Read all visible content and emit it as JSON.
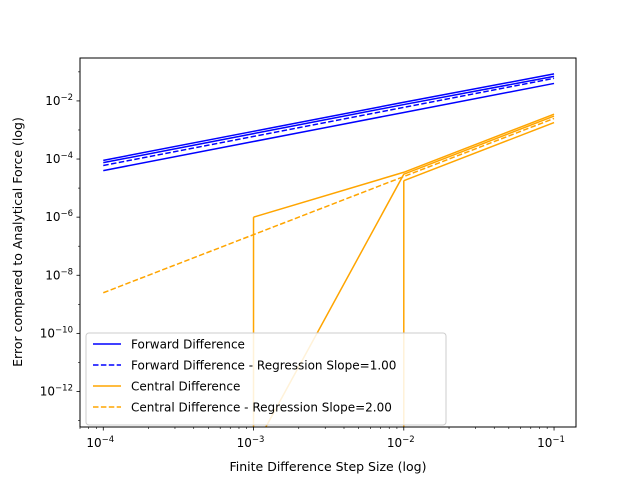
{
  "chart_data": {
    "type": "line",
    "title": "",
    "xlabel": "Finite Difference Step Size (log)",
    "ylabel": "Error compared to Analytical Force (log)",
    "xscale": "log",
    "yscale": "log",
    "xlim": [
      7e-05,
      0.14
    ],
    "ylim": [
      6e-14,
      0.3
    ],
    "grid": false,
    "legend_position": "lower-left",
    "x_ticks": [
      {
        "value": 0.0001,
        "base": "10",
        "exp": "−4"
      },
      {
        "value": 0.001,
        "base": "10",
        "exp": "−3"
      },
      {
        "value": 0.01,
        "base": "10",
        "exp": "−2"
      },
      {
        "value": 0.1,
        "base": "10",
        "exp": "−1"
      }
    ],
    "y_ticks": [
      {
        "value": 0.01,
        "base": "10",
        "exp": "−2"
      },
      {
        "value": 0.0001,
        "base": "10",
        "exp": "−4"
      },
      {
        "value": 1e-06,
        "base": "10",
        "exp": "−6"
      },
      {
        "value": 1e-08,
        "base": "10",
        "exp": "−8"
      },
      {
        "value": 1e-10,
        "base": "10",
        "exp": "−10"
      },
      {
        "value": 1e-12,
        "base": "10",
        "exp": "−12"
      }
    ],
    "series": [
      {
        "name": "Forward Difference",
        "color": "#0000ff",
        "style": "solid",
        "legend": true,
        "points": [
          [
            0.0001,
            9e-05
          ],
          [
            0.001,
            0.0009
          ],
          [
            0.01,
            0.009
          ],
          [
            0.1,
            0.085
          ]
        ]
      },
      {
        "name": "",
        "color": "#0000ff",
        "style": "solid",
        "legend": false,
        "points": [
          [
            0.0001,
            7.5e-05
          ],
          [
            0.001,
            0.00075
          ],
          [
            0.01,
            0.0075
          ],
          [
            0.1,
            0.07
          ]
        ]
      },
      {
        "name": "",
        "color": "#0000ff",
        "style": "solid",
        "legend": false,
        "points": [
          [
            0.0001,
            4e-05
          ],
          [
            0.001,
            0.0004
          ],
          [
            0.01,
            0.004
          ],
          [
            0.1,
            0.04
          ]
        ]
      },
      {
        "name": "Forward Difference - Regression Slope=1.00",
        "color": "#0000ff",
        "style": "dashed",
        "legend": true,
        "points": [
          [
            0.0001,
            6e-05
          ],
          [
            0.1,
            0.06
          ]
        ]
      },
      {
        "name": "Central Difference",
        "color": "#ffa500",
        "style": "solid",
        "legend": true,
        "points": [
          [
            0.001,
            1e-06
          ],
          [
            0.01,
            3.5e-05
          ],
          [
            0.1,
            0.0035
          ]
        ]
      },
      {
        "name": "",
        "color": "#ffa500",
        "style": "solid",
        "legend": false,
        "points": [
          [
            0.001,
            1e-14
          ],
          [
            0.01,
            3e-05
          ],
          [
            0.1,
            0.003
          ]
        ]
      },
      {
        "name": "",
        "color": "#ffa500",
        "style": "solid",
        "legend": false,
        "points": [
          [
            0.001,
            1e-06
          ],
          [
            0.001,
            1e-14
          ]
        ]
      },
      {
        "name": "",
        "color": "#ffa500",
        "style": "solid",
        "legend": false,
        "points": [
          [
            0.01,
            1.8e-05
          ],
          [
            0.01,
            1e-14
          ]
        ]
      },
      {
        "name": "",
        "color": "#ffa500",
        "style": "solid",
        "legend": false,
        "points": [
          [
            0.01,
            1.8e-05
          ],
          [
            0.1,
            0.0018
          ]
        ]
      },
      {
        "name": "Central Difference - Regression Slope=2.00",
        "color": "#ffa500",
        "style": "dashed",
        "legend": true,
        "points": [
          [
            0.0001,
            2.5e-09
          ],
          [
            0.1,
            0.0025
          ]
        ]
      }
    ]
  }
}
